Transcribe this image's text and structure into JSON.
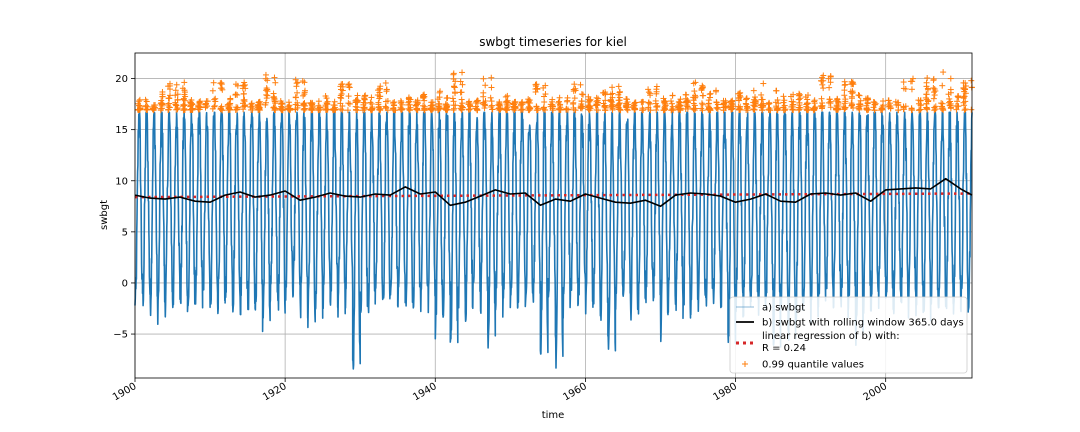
{
  "chart_data": {
    "type": "line",
    "title": "swbgt timeseries for kiel",
    "xlabel": "time",
    "ylabel": "swbgt",
    "xlim": [
      1900,
      2011.5
    ],
    "ylim": [
      -9.3,
      22.5
    ],
    "x_ticks": [
      1900,
      1920,
      1940,
      1960,
      1980,
      2000
    ],
    "x_tick_labels": [
      "1900",
      "1920",
      "1940",
      "1960",
      "1980",
      "2000"
    ],
    "y_ticks": [
      -5,
      0,
      5,
      10,
      15,
      20
    ],
    "y_tick_labels": [
      "−5",
      "0",
      "5",
      "10",
      "15",
      "20"
    ],
    "grid": true,
    "legend_position": "lower-right",
    "series": [
      {
        "name": "a) swbgt",
        "kind": "daily-line",
        "color": "#1f77b4",
        "summer_peak": 16.7,
        "winter_trough_typical": -1.0,
        "winter_trough_min": [
          {
            "x": 1901,
            "y": -1.2
          },
          {
            "x": 1907,
            "y": -2.8
          },
          {
            "x": 1917,
            "y": -3.6
          },
          {
            "x": 1923,
            "y": -3.0
          },
          {
            "x": 1929,
            "y": -7.8
          },
          {
            "x": 1940,
            "y": -4.5
          },
          {
            "x": 1942,
            "y": -5.5
          },
          {
            "x": 1947,
            "y": -5.2
          },
          {
            "x": 1954,
            "y": -5.8
          },
          {
            "x": 1956,
            "y": -7.0
          },
          {
            "x": 1963,
            "y": -6.5
          },
          {
            "x": 1970,
            "y": -4.0
          },
          {
            "x": 1979,
            "y": -4.8
          },
          {
            "x": 1985,
            "y": -5.5
          },
          {
            "x": 1987,
            "y": -5.2
          },
          {
            "x": 1996,
            "y": -4.5
          },
          {
            "x": 2010,
            "y": -2.0
          }
        ]
      },
      {
        "name": "b) swbgt with rolling window 365.0 days",
        "kind": "rolling-mean",
        "color": "#000000",
        "x": [
          1900,
          1902,
          1904,
          1906,
          1908,
          1910,
          1912,
          1914,
          1916,
          1918,
          1920,
          1922,
          1924,
          1926,
          1928,
          1930,
          1932,
          1934,
          1936,
          1938,
          1940,
          1942,
          1944,
          1946,
          1948,
          1950,
          1952,
          1954,
          1956,
          1958,
          1960,
          1962,
          1964,
          1966,
          1968,
          1970,
          1972,
          1974,
          1976,
          1978,
          1980,
          1982,
          1984,
          1986,
          1988,
          1990,
          1992,
          1994,
          1996,
          1998,
          2000,
          2002,
          2004,
          2006,
          2008,
          2010,
          2011.5
        ],
        "y": [
          8.6,
          8.3,
          8.2,
          8.4,
          8.0,
          7.9,
          8.6,
          8.9,
          8.4,
          8.6,
          9.0,
          8.1,
          8.4,
          8.8,
          8.5,
          8.4,
          8.7,
          8.6,
          9.4,
          8.7,
          8.9,
          7.6,
          7.9,
          8.5,
          9.1,
          8.7,
          8.8,
          7.6,
          8.2,
          8.0,
          8.7,
          8.3,
          7.9,
          7.8,
          8.1,
          7.5,
          8.6,
          8.8,
          8.7,
          8.5,
          7.9,
          8.2,
          8.7,
          8.0,
          7.9,
          8.7,
          8.8,
          8.6,
          8.8,
          8.0,
          9.1,
          9.2,
          9.3,
          9.2,
          10.2,
          9.2,
          8.6
        ]
      },
      {
        "name": "linear regression of b) with:\nR = 0.24",
        "legend_lines": [
          "linear regression of b) with:",
          "R = 0.24"
        ],
        "kind": "regression",
        "color": "#d62728",
        "x": [
          1900,
          2011.5
        ],
        "y": [
          8.4,
          8.75
        ]
      },
      {
        "name": "0.99 quantile values",
        "kind": "scatter",
        "color": "#ff7f0e",
        "threshold": 16.9,
        "y_max": 21.0,
        "peaks": [
          {
            "x": 1904,
            "y": 19.5
          },
          {
            "x": 1906,
            "y": 19.8
          },
          {
            "x": 1911,
            "y": 19.6
          },
          {
            "x": 1914,
            "y": 19.8
          },
          {
            "x": 1918,
            "y": 20.5
          },
          {
            "x": 1922,
            "y": 20.0
          },
          {
            "x": 1928,
            "y": 19.5
          },
          {
            "x": 1933,
            "y": 19.6
          },
          {
            "x": 1943,
            "y": 20.8
          },
          {
            "x": 1947,
            "y": 20.3
          },
          {
            "x": 1954,
            "y": 19.6
          },
          {
            "x": 1959,
            "y": 19.5
          },
          {
            "x": 1964,
            "y": 19.3
          },
          {
            "x": 1969,
            "y": 19.5
          },
          {
            "x": 1975,
            "y": 19.8
          },
          {
            "x": 1983,
            "y": 19.6
          },
          {
            "x": 1992,
            "y": 20.8
          },
          {
            "x": 1995,
            "y": 19.8
          },
          {
            "x": 2003,
            "y": 20.6
          },
          {
            "x": 2006,
            "y": 20.3
          },
          {
            "x": 2008,
            "y": 21.0
          },
          {
            "x": 2011,
            "y": 20.0
          }
        ]
      }
    ]
  }
}
